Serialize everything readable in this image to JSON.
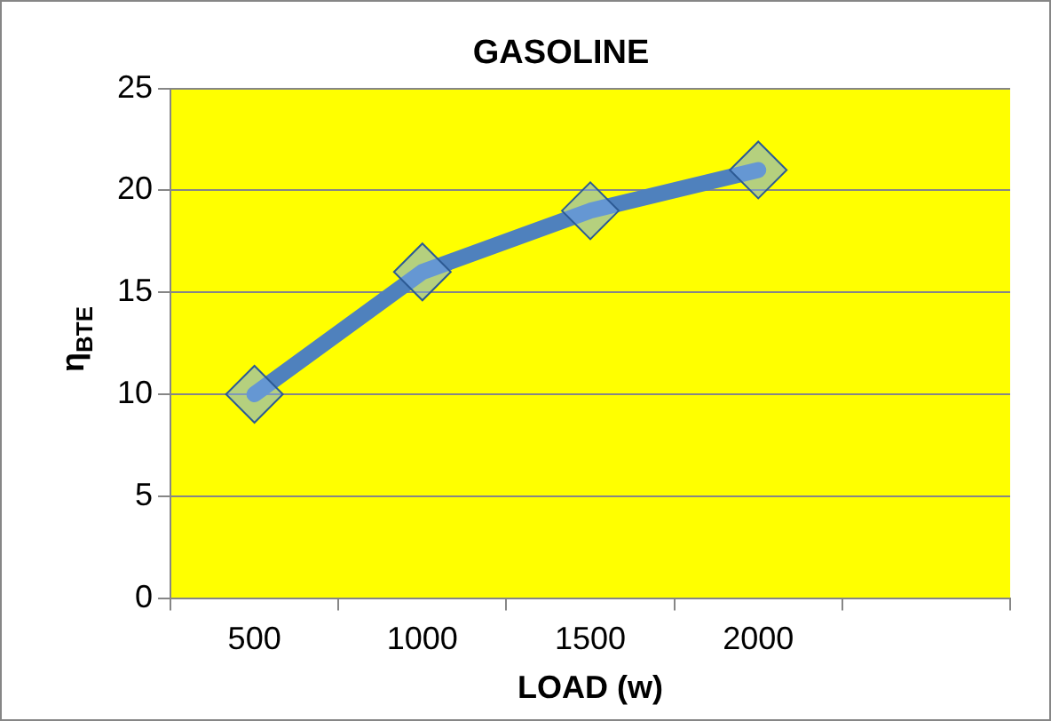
{
  "chart_data": {
    "type": "line",
    "title": "GASOLINE",
    "xlabel": "LOAD (w)",
    "ylabel": "η$_{BTE}$",
    "categories": [
      "500",
      "1000",
      "1500",
      "2000",
      null
    ],
    "series": [
      {
        "color": "#4f81bd",
        "values": [
          10,
          16,
          19,
          21,
          null
        ]
      }
    ],
    "ylim": [
      0,
      25
    ],
    "yticks": [
      0,
      5,
      10,
      15,
      20,
      25
    ],
    "grid": "y",
    "legend": false,
    "marker": "diamond",
    "line_style": "solid"
  }
}
